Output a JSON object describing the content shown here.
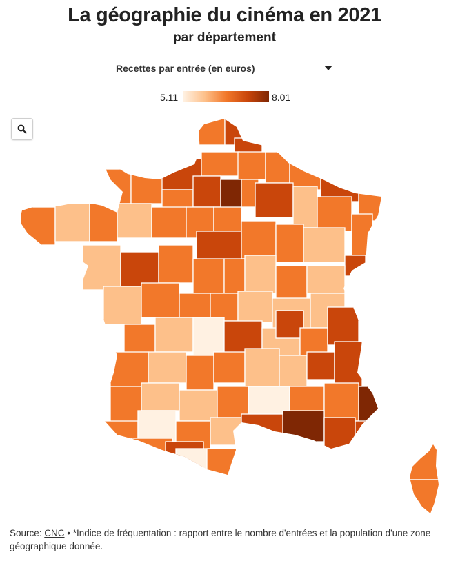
{
  "header": {
    "title": "La géographie du cinéma en 2021",
    "subtitle": "par département"
  },
  "selector": {
    "selected": "Recettes par entrée (en euros)"
  },
  "legend": {
    "min": "5.11",
    "max": "8.01",
    "colors": [
      "#fff1e2",
      "#fdc08a",
      "#f2782a",
      "#c9460b",
      "#7f2704"
    ]
  },
  "map": {
    "zoom_icon": "search-icon",
    "border_color": "#ffffff"
  },
  "footer": {
    "source_label": "Source: ",
    "source_link": "CNC",
    "note": " • *Indice de fréquentation : rapport entre le nombre d'entrées et la population d'une zone géographique donnée."
  }
}
